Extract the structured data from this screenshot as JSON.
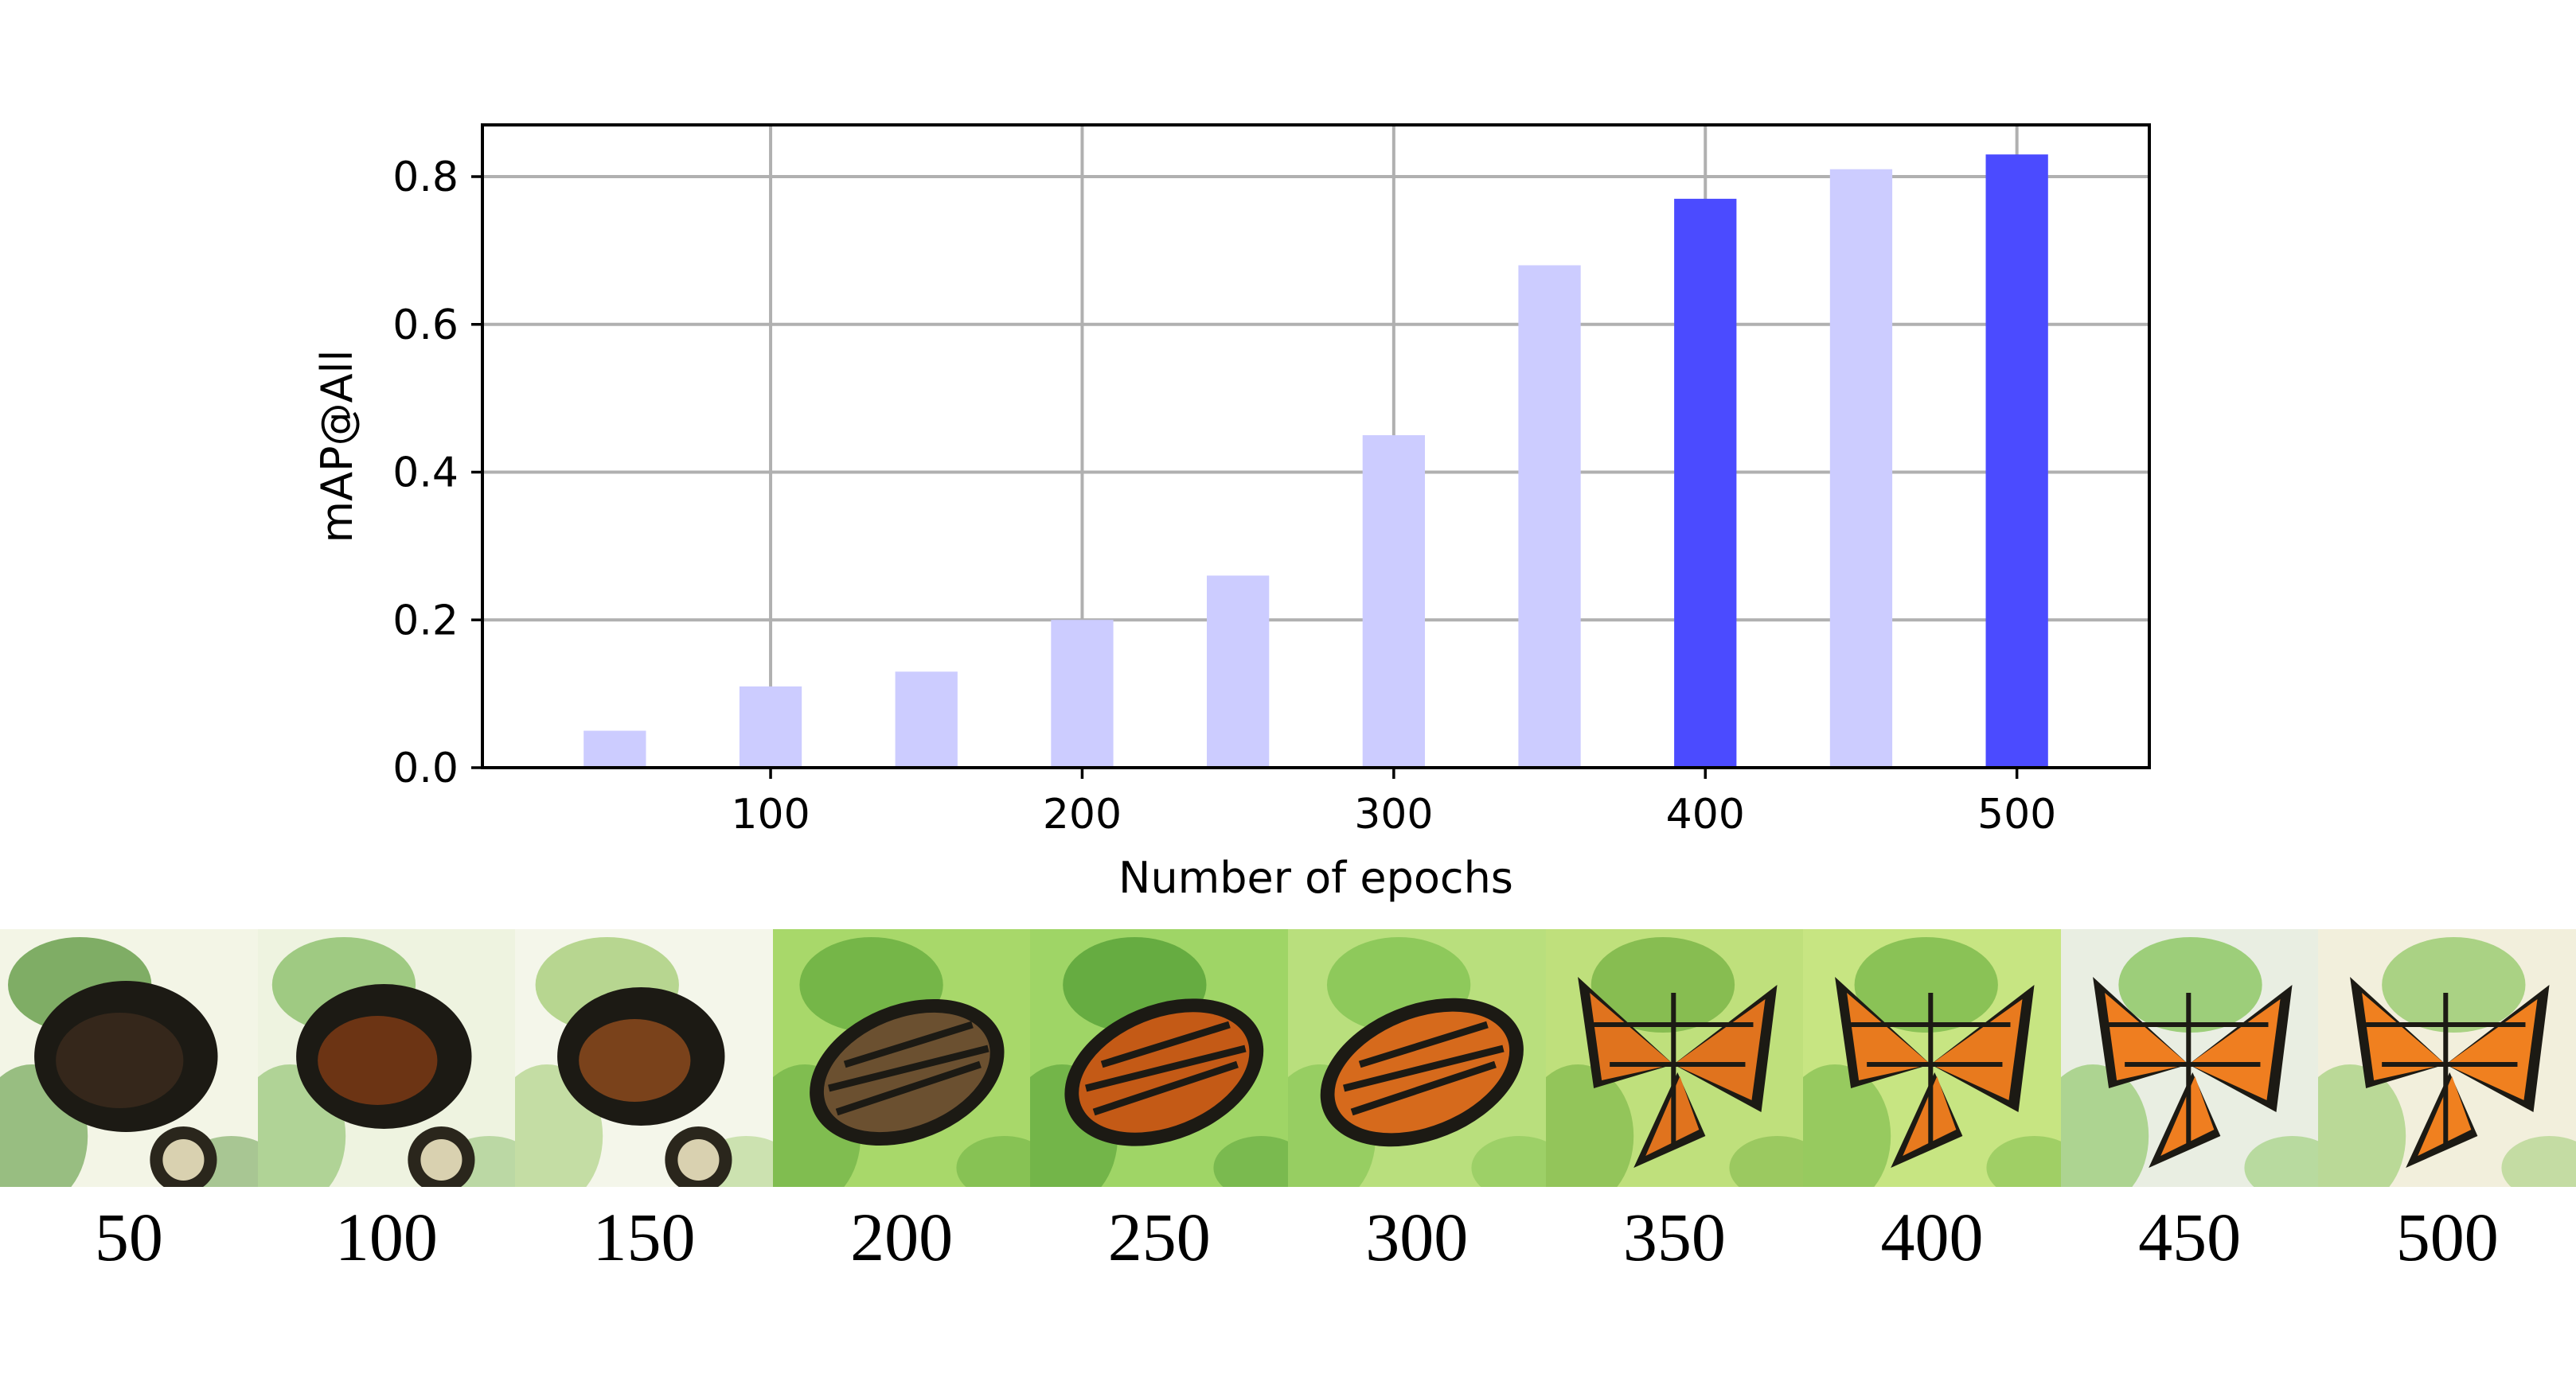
{
  "chart_data": {
    "type": "bar",
    "x": [
      50,
      100,
      150,
      200,
      250,
      300,
      350,
      400,
      450,
      500
    ],
    "values": [
      0.05,
      0.11,
      0.13,
      0.2,
      0.26,
      0.45,
      0.68,
      0.77,
      0.81,
      0.83
    ],
    "highlighted": [
      false,
      false,
      false,
      false,
      false,
      false,
      false,
      true,
      false,
      true
    ],
    "xlabel": "Number of epochs",
    "ylabel": "mAP@All",
    "xlim": [
      7.5,
      542.5
    ],
    "ylim": [
      0,
      0.87
    ],
    "xticks": [
      100,
      200,
      300,
      400,
      500
    ],
    "xtick_labels": [
      "100",
      "200",
      "300",
      "400",
      "500"
    ],
    "yticks": [
      0.0,
      0.2,
      0.4,
      0.6,
      0.8
    ],
    "ytick_labels": [
      "0.0",
      "0.2",
      "0.4",
      "0.6",
      "0.8"
    ],
    "grid": true,
    "colors": {
      "bar": "#ccccff",
      "bar_highlight": "#4b4bff"
    }
  },
  "thumbnails": {
    "labels": [
      "50",
      "100",
      "150",
      "200",
      "250",
      "300",
      "350",
      "400",
      "450",
      "500"
    ],
    "description_icon": "butterfly-generation-thumbnail"
  }
}
